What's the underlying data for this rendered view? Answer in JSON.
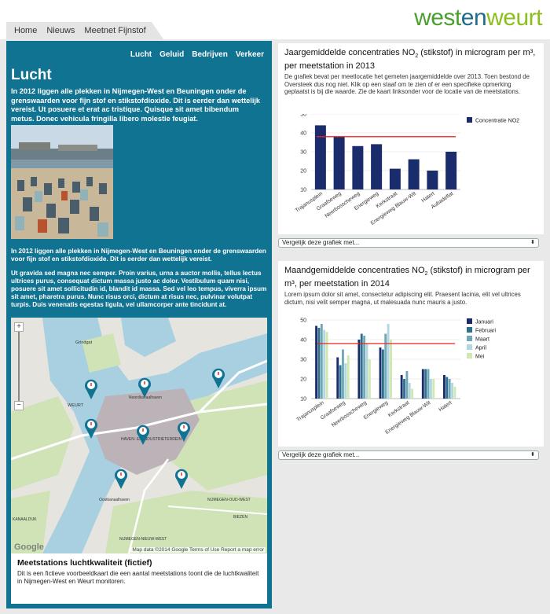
{
  "nav": [
    "Home",
    "Nieuws",
    "Meetnet Fijnstof"
  ],
  "logo": {
    "part1": "west",
    "part2": "en",
    "part3": "weurt"
  },
  "subnav": [
    "Lucht",
    "Geluid",
    "Bedrijven",
    "Verkeer"
  ],
  "page_title": "Lucht",
  "intro": "In 2012 liggen alle plekken in Nijmegen-West en Beuningen onder de grenswaarden voor fijn stof en stikstofdioxide. Dit is eerder dan wettelijk vereist. Ut posuere et erat ac tristique. Quisque sit amet bibendum metus. Donec vehicula fringilla libero molestie feugiat.",
  "body1": "In 2012 liggen alle plekken in Nijmegen-West en Beuningen onder de grenswaarden voor fijn stof en stikstofdioxide. Dit is eerder dan wettelijk vereist.",
  "body2": "Ut gravida sed magna nec semper. Proin varius, urna a auctor mollis, tellus lectus ultrices purus, consequat dictum massa justo ac dolor. Vestibulum quam nisi, posuere sit amet sollicitudin id, blandit id massa. Sed vel leo tempus, viverra ipsum sit amet, pharetra purus. Nunc risus orci, dictum at risus nec, pulvinar volutpat turpis. Duis venenatis egestas ligula, vel ullamcorper ante tincidunt at.",
  "map": {
    "labels": [
      "Grindgat",
      "WEURT",
      "Noordkanaalhaven",
      "HAVEN- EN INDUSTRIETERREIN",
      "Oostkanaalhaven",
      "NIJMEGEN-OUD-WEST",
      "BIEZEN",
      "KANAALDIJK",
      "NIJMEGEN-NIEUW-WEST"
    ],
    "zoom_in": "+",
    "zoom_out": "−",
    "google": "Google",
    "attribution": "Map data ©2014 Google   Terms of Use   Report a map error"
  },
  "caption": {
    "title": "Meetstations luchtkwaliteit (fictief)",
    "text": "Dit is een fictieve voorbeeldkaart die een aantal meetstations toont die de luchtkwaliteit in Nijmegen-West en Weurt monitoren."
  },
  "card1": {
    "title_a": "Jaargemiddelde concentraties NO",
    "title_sub": "2",
    "title_b": " (stikstof) in microgram per m³, per meetstation in 2013",
    "desc": "De grafiek bevat per meetlocatie het gemeten jaargemiddelde over 2013. Toen bestond de Oversteek dus nog niet. Klik op een staaf om te zien of er een specifieke opmerking geplaatst is bij die waarde. Zie de kaart linksonder voor de locatie van de meetstations.",
    "compare": "Vergelijk deze grafiek met..."
  },
  "card2": {
    "title_a": "Maandgemiddelde concentraties NO",
    "title_sub": "2",
    "title_b": " (stikstof) in microgram per m³, per meetstation in 2014",
    "desc": "Lorem ipsum dolor sit amet, consectetur adipiscing elit. Praesent lacinia, elit vel ultrices dictum, nisi velit semper magna, ut malesuada nunc mauris a justo.",
    "compare": "Vergelijk deze grafiek met..."
  },
  "chart_data": [
    {
      "type": "bar",
      "categories": [
        "Trajanusplein",
        "Graafseweg",
        "Neerbosscheweg",
        "Energieweg",
        "Kerkstraat",
        "Energieweg Blauw-Wit",
        "Hatert",
        "Aubadeflat"
      ],
      "series": [
        {
          "name": "Concentratie NO2",
          "values": [
            44,
            38,
            33,
            34,
            21,
            26,
            20,
            30
          ],
          "color": "#1a2c6b"
        }
      ],
      "reference_line": 38,
      "reference_color": "#e8251f",
      "ylim": [
        10,
        50
      ],
      "yticks": [
        10,
        20,
        30,
        40,
        50
      ],
      "legend": "right",
      "grid": true
    },
    {
      "type": "bar",
      "categories": [
        "Trajanusplein",
        "Graafseweg",
        "Neerbosscheweg",
        "Energieweg",
        "Kerkstraat",
        "Energieweg Blauw-Wit",
        "Hatert"
      ],
      "series": [
        {
          "name": "Januari",
          "values": [
            47,
            31,
            40,
            36,
            22,
            25,
            22
          ],
          "color": "#1a2c6b"
        },
        {
          "name": "Februari",
          "values": [
            46,
            27,
            43,
            35,
            20,
            25,
            21
          ],
          "color": "#2e6f8e"
        },
        {
          "name": "Maart",
          "values": [
            48,
            35,
            42,
            43,
            24,
            25,
            20
          ],
          "color": "#6ea7b8"
        },
        {
          "name": "April",
          "values": [
            45,
            28,
            38,
            48,
            18,
            20,
            18
          ],
          "color": "#b3d7df"
        },
        {
          "name": "Mei",
          "values": [
            44,
            32,
            30,
            40,
            15,
            20,
            16
          ],
          "color": "#cfe7b0"
        }
      ],
      "reference_line": 38,
      "reference_color": "#e8251f",
      "ylim": [
        10,
        50
      ],
      "yticks": [
        10,
        20,
        30,
        40,
        50
      ],
      "legend": "right",
      "grid": true
    }
  ]
}
